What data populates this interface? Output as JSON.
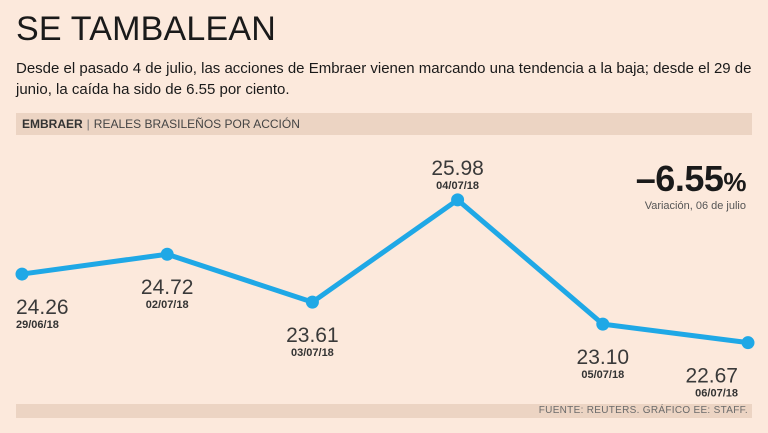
{
  "header": {
    "title": "SE TAMBALEAN",
    "subtitle": "Desde el pasado 4 de julio, las acciones de Embraer vienen marcando una tendencia a la baja; desde el 29 de junio, la caída ha sido de 6.55 por ciento."
  },
  "band": {
    "company": "EMBRAER",
    "separator": "|",
    "unit": "REALES BRASILEÑOS POR ACCIÓN"
  },
  "change": {
    "value": "–6.55",
    "suffix": "%",
    "note": "Variación, 06 de julio"
  },
  "footer": {
    "source": "FUENTE: REUTERS.  GRÁFICO EE: STAFF."
  },
  "colors": {
    "line": "#1fa8e6",
    "background": "#fce9dc",
    "band": "#ecd4c3"
  },
  "chart_data": {
    "type": "line",
    "title": "SE TAMBALEAN",
    "xlabel": "",
    "ylabel": "Reales brasileños por acción",
    "categories": [
      "29/06/18",
      "02/07/18",
      "03/07/18",
      "04/07/18",
      "05/07/18",
      "06/07/18"
    ],
    "values": [
      24.26,
      24.72,
      23.61,
      25.98,
      23.1,
      22.67
    ],
    "value_labels": [
      "24.26",
      "24.72",
      "23.61",
      "25.98",
      "23.10",
      "22.67"
    ],
    "grid": false,
    "legend": "none"
  }
}
